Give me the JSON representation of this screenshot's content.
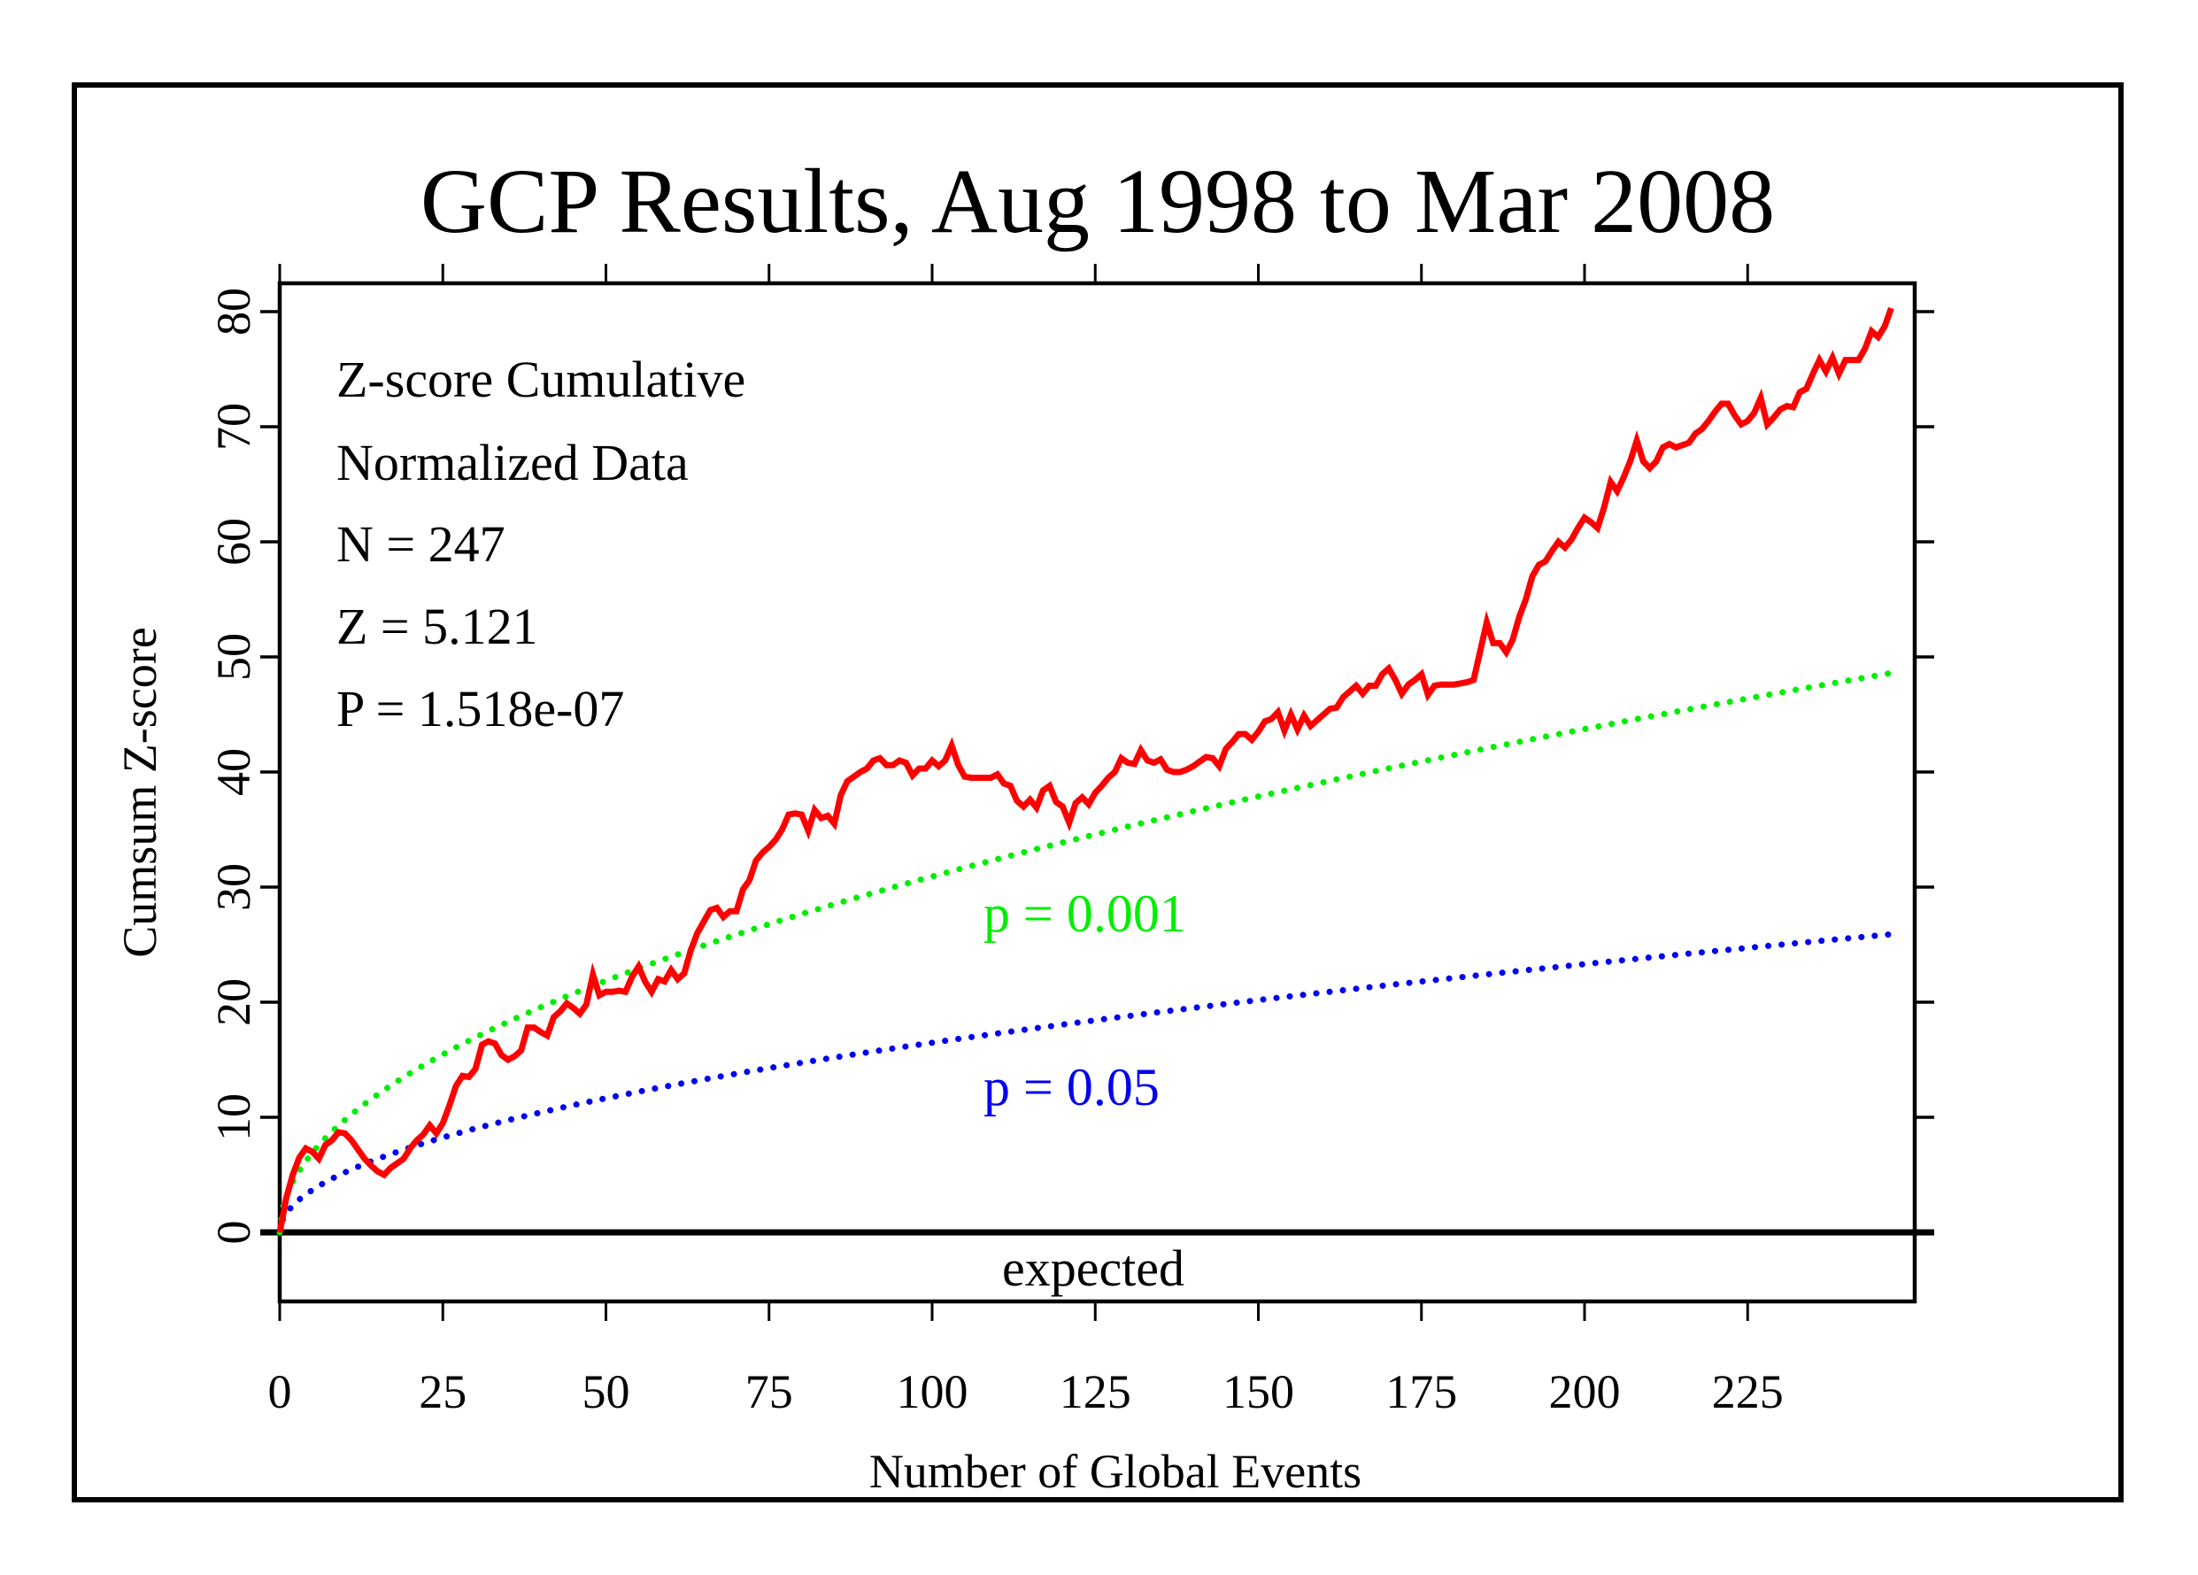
{
  "chart_data": {
    "type": "line",
    "title": "GCP Results, Aug 1998 to Mar 2008",
    "xlabel": "Number of Global Events",
    "ylabel": "Cumsum Z-score",
    "xlim": [
      0,
      250
    ],
    "ylim": [
      -6,
      82
    ],
    "x_ticks": [
      0,
      25,
      50,
      75,
      100,
      125,
      150,
      175,
      200,
      225
    ],
    "x_tick_labels": [
      "0",
      "25",
      "50",
      "75",
      "100",
      "125",
      "150",
      "175",
      "200",
      "225"
    ],
    "y_ticks": [
      0,
      10,
      20,
      30,
      40,
      50,
      60,
      70,
      80
    ],
    "y_tick_labels": [
      "0",
      "10",
      "20",
      "30",
      "40",
      "50",
      "60",
      "70",
      "80"
    ],
    "grid": false,
    "annotations": {
      "stats": [
        "Z-score Cumulative",
        "Normalized Data",
        "N = 247",
        "Z = 5.121",
        "P = 1.518e-07"
      ],
      "expected_label": "expected",
      "p001_label": "p = 0.001",
      "p05_label": "p = 0.05"
    },
    "colors": {
      "cumsum": "#ff0000",
      "p001": "#00ee00",
      "p05": "#0000ee",
      "axes": "#000000"
    },
    "series": [
      {
        "name": "Cumulative Z-score",
        "style": "solid",
        "x": [
          0,
          1,
          2,
          3,
          4,
          5,
          6,
          7,
          8,
          9,
          10,
          11,
          12,
          13,
          14,
          15,
          16,
          17,
          18,
          19,
          20,
          21,
          22,
          23,
          24,
          25,
          26,
          27,
          28,
          29,
          30,
          31,
          32,
          33,
          34,
          35,
          36,
          37,
          38,
          39,
          40,
          41,
          42,
          43,
          44,
          45,
          46,
          47,
          48,
          49,
          50,
          51,
          52,
          53,
          54,
          55,
          56,
          57,
          58,
          59,
          60,
          61,
          62,
          63,
          64,
          65,
          66,
          67,
          68,
          69,
          70,
          71,
          72,
          73,
          74,
          75,
          76,
          77,
          78,
          79,
          80,
          81,
          82,
          83,
          84,
          85,
          86,
          87,
          88,
          89,
          90,
          91,
          92,
          93,
          94,
          95,
          96,
          97,
          98,
          99,
          100,
          101,
          102,
          103,
          104,
          105,
          106,
          107,
          108,
          109,
          110,
          111,
          112,
          113,
          114,
          115,
          116,
          117,
          118,
          119,
          120,
          121,
          122,
          123,
          124,
          125,
          126,
          127,
          128,
          129,
          130,
          131,
          132,
          133,
          134,
          135,
          136,
          137,
          138,
          139,
          140,
          141,
          142,
          143,
          144,
          145,
          146,
          147,
          148,
          149,
          150,
          151,
          152,
          153,
          154,
          155,
          156,
          157,
          158,
          159,
          160,
          161,
          162,
          163,
          164,
          165,
          166,
          167,
          168,
          169,
          170,
          171,
          172,
          173,
          174,
          175,
          176,
          177,
          178,
          179,
          180,
          181,
          182,
          183,
          184,
          185,
          186,
          187,
          188,
          189,
          190,
          191,
          192,
          193,
          194,
          195,
          196,
          197,
          198,
          199,
          200,
          201,
          202,
          203,
          204,
          205,
          206,
          207,
          208,
          209,
          210,
          211,
          212,
          213,
          214,
          215,
          216,
          217,
          218,
          219,
          220,
          221,
          222,
          223,
          224,
          225,
          226,
          227,
          228,
          229,
          230,
          231,
          232,
          233,
          234,
          235,
          236,
          237,
          238,
          239,
          240,
          241,
          242,
          243,
          244,
          245,
          246,
          247
        ],
        "y": [
          0,
          3.0,
          5.0,
          6.5,
          7.3,
          7.0,
          6.4,
          7.6,
          8.0,
          8.7,
          8.6,
          8.0,
          7.2,
          6.4,
          5.8,
          5.3,
          5.0,
          5.6,
          6.0,
          6.4,
          7.3,
          8.0,
          8.5,
          9.3,
          8.6,
          9.5,
          11.0,
          12.7,
          13.6,
          13.5,
          14.2,
          16.3,
          16.6,
          16.4,
          15.4,
          15.0,
          15.3,
          15.8,
          17.8,
          17.8,
          17.4,
          17.1,
          18.7,
          19.2,
          19.9,
          19.5,
          19.0,
          19.8,
          22.4,
          20.6,
          20.9,
          20.9,
          21.0,
          20.9,
          22.2,
          23.1,
          21.8,
          20.9,
          22.0,
          21.8,
          22.8,
          22.0,
          22.5,
          24.5,
          26.0,
          27.0,
          28.0,
          28.2,
          27.4,
          27.9,
          27.9,
          29.8,
          30.6,
          32.3,
          33.0,
          33.5,
          34.1,
          35.0,
          36.3,
          36.4,
          36.3,
          34.9,
          36.7,
          36.0,
          36.2,
          35.5,
          38.0,
          39.2,
          39.6,
          40.0,
          40.3,
          41.0,
          41.2,
          40.6,
          40.6,
          41.0,
          40.8,
          39.7,
          40.3,
          40.3,
          41.0,
          40.5,
          41.0,
          42.3,
          40.6,
          39.6,
          39.5,
          39.5,
          39.5,
          39.5,
          39.8,
          39.0,
          38.8,
          37.5,
          37.0,
          37.6,
          36.9,
          38.4,
          38.8,
          37.4,
          37.0,
          35.6,
          37.3,
          37.8,
          37.2,
          38.2,
          38.8,
          39.5,
          40.0,
          41.2,
          40.8,
          40.7,
          41.9,
          41.0,
          40.8,
          41.1,
          40.2,
          40.0,
          40.0,
          40.2,
          40.5,
          40.9,
          41.3,
          41.2,
          40.5,
          42.0,
          42.6,
          43.3,
          43.3,
          42.8,
          43.5,
          44.4,
          44.6,
          45.2,
          43.6,
          45.0,
          43.7,
          44.9,
          44.0,
          44.5,
          45.0,
          45.5,
          45.6,
          46.5,
          47.0,
          47.5,
          46.8,
          47.5,
          47.5,
          48.5,
          49.0,
          48.0,
          46.8,
          47.6,
          48.0,
          48.5,
          46.7,
          47.5,
          47.6,
          47.6,
          47.6,
          47.7,
          47.8,
          48.0,
          50.5,
          53.0,
          51.2,
          51.2,
          50.4,
          51.5,
          53.5,
          55.0,
          57.0,
          58.0,
          58.3,
          59.2,
          60.0,
          59.5,
          60.2,
          61.2,
          62.1,
          61.7,
          61.2,
          63.0,
          65.2,
          64.4,
          65.6,
          67.0,
          68.8,
          67.0,
          66.4,
          67.0,
          68.2,
          68.5,
          68.2,
          68.4,
          68.6,
          69.4,
          69.8,
          70.5,
          71.3,
          72.0,
          72.0,
          71.0,
          70.2,
          70.5,
          71.2,
          72.5,
          70.2,
          70.8,
          71.5,
          71.8,
          71.7,
          73.0,
          73.3,
          74.6,
          75.8,
          74.8,
          76.0,
          74.6,
          75.8,
          75.8,
          75.8,
          76.8,
          78.3,
          77.8,
          78.7,
          80.3
        ]
      },
      {
        "name": "p = 0.001",
        "style": "dotted",
        "formula": "3.09 * sqrt(n)",
        "endpoint": [
          247,
          48.6
        ]
      },
      {
        "name": "p = 0.05",
        "style": "dotted",
        "formula": "1.645 * sqrt(n)",
        "endpoint": [
          247,
          25.9
        ]
      },
      {
        "name": "expected",
        "style": "solid",
        "value": 0
      }
    ]
  }
}
